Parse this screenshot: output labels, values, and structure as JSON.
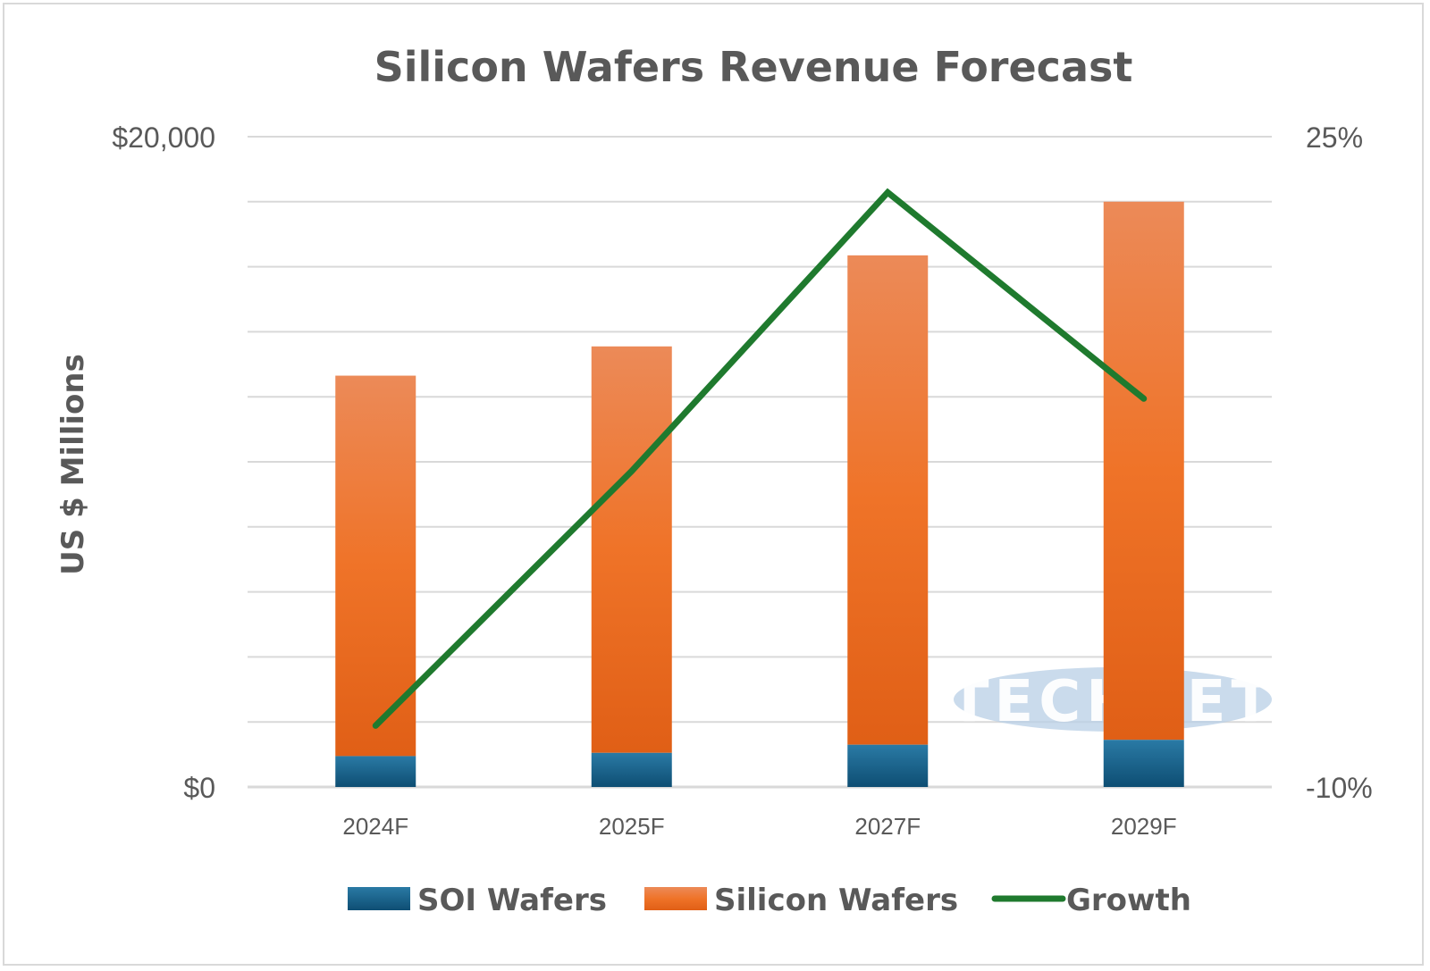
{
  "chart_data": {
    "type": "bar",
    "stacked": true,
    "title": "Silicon Wafers Revenue Forecast",
    "ylabel": "US $ Millions",
    "categories": [
      "2024F",
      "2025F",
      "2027F",
      "2029F"
    ],
    "ylim": [
      0,
      20000
    ],
    "y_ticks": [
      "$0",
      "$20,000"
    ],
    "y2lim": [
      -10,
      25
    ],
    "y2_ticks": [
      "-10%",
      "25%"
    ],
    "grid": true,
    "legend_position": "bottom",
    "series": [
      {
        "name": "SOI Wafers",
        "type": "bar",
        "axis": "left",
        "color": "#1a5f86",
        "values": [
          950,
          1050,
          1300,
          1450
        ]
      },
      {
        "name": "Silicon Wafers",
        "type": "bar",
        "axis": "left",
        "color": "#ee7a33",
        "values": [
          11700,
          12500,
          15050,
          16550
        ]
      },
      {
        "name": "Growth",
        "type": "line",
        "axis": "right",
        "color": "#1f7a2e",
        "values": [
          -6.7,
          7.0,
          22.0,
          10.9
        ]
      }
    ]
  },
  "watermark": {
    "text": "TECHCET",
    "color": "#b8cfe6"
  }
}
